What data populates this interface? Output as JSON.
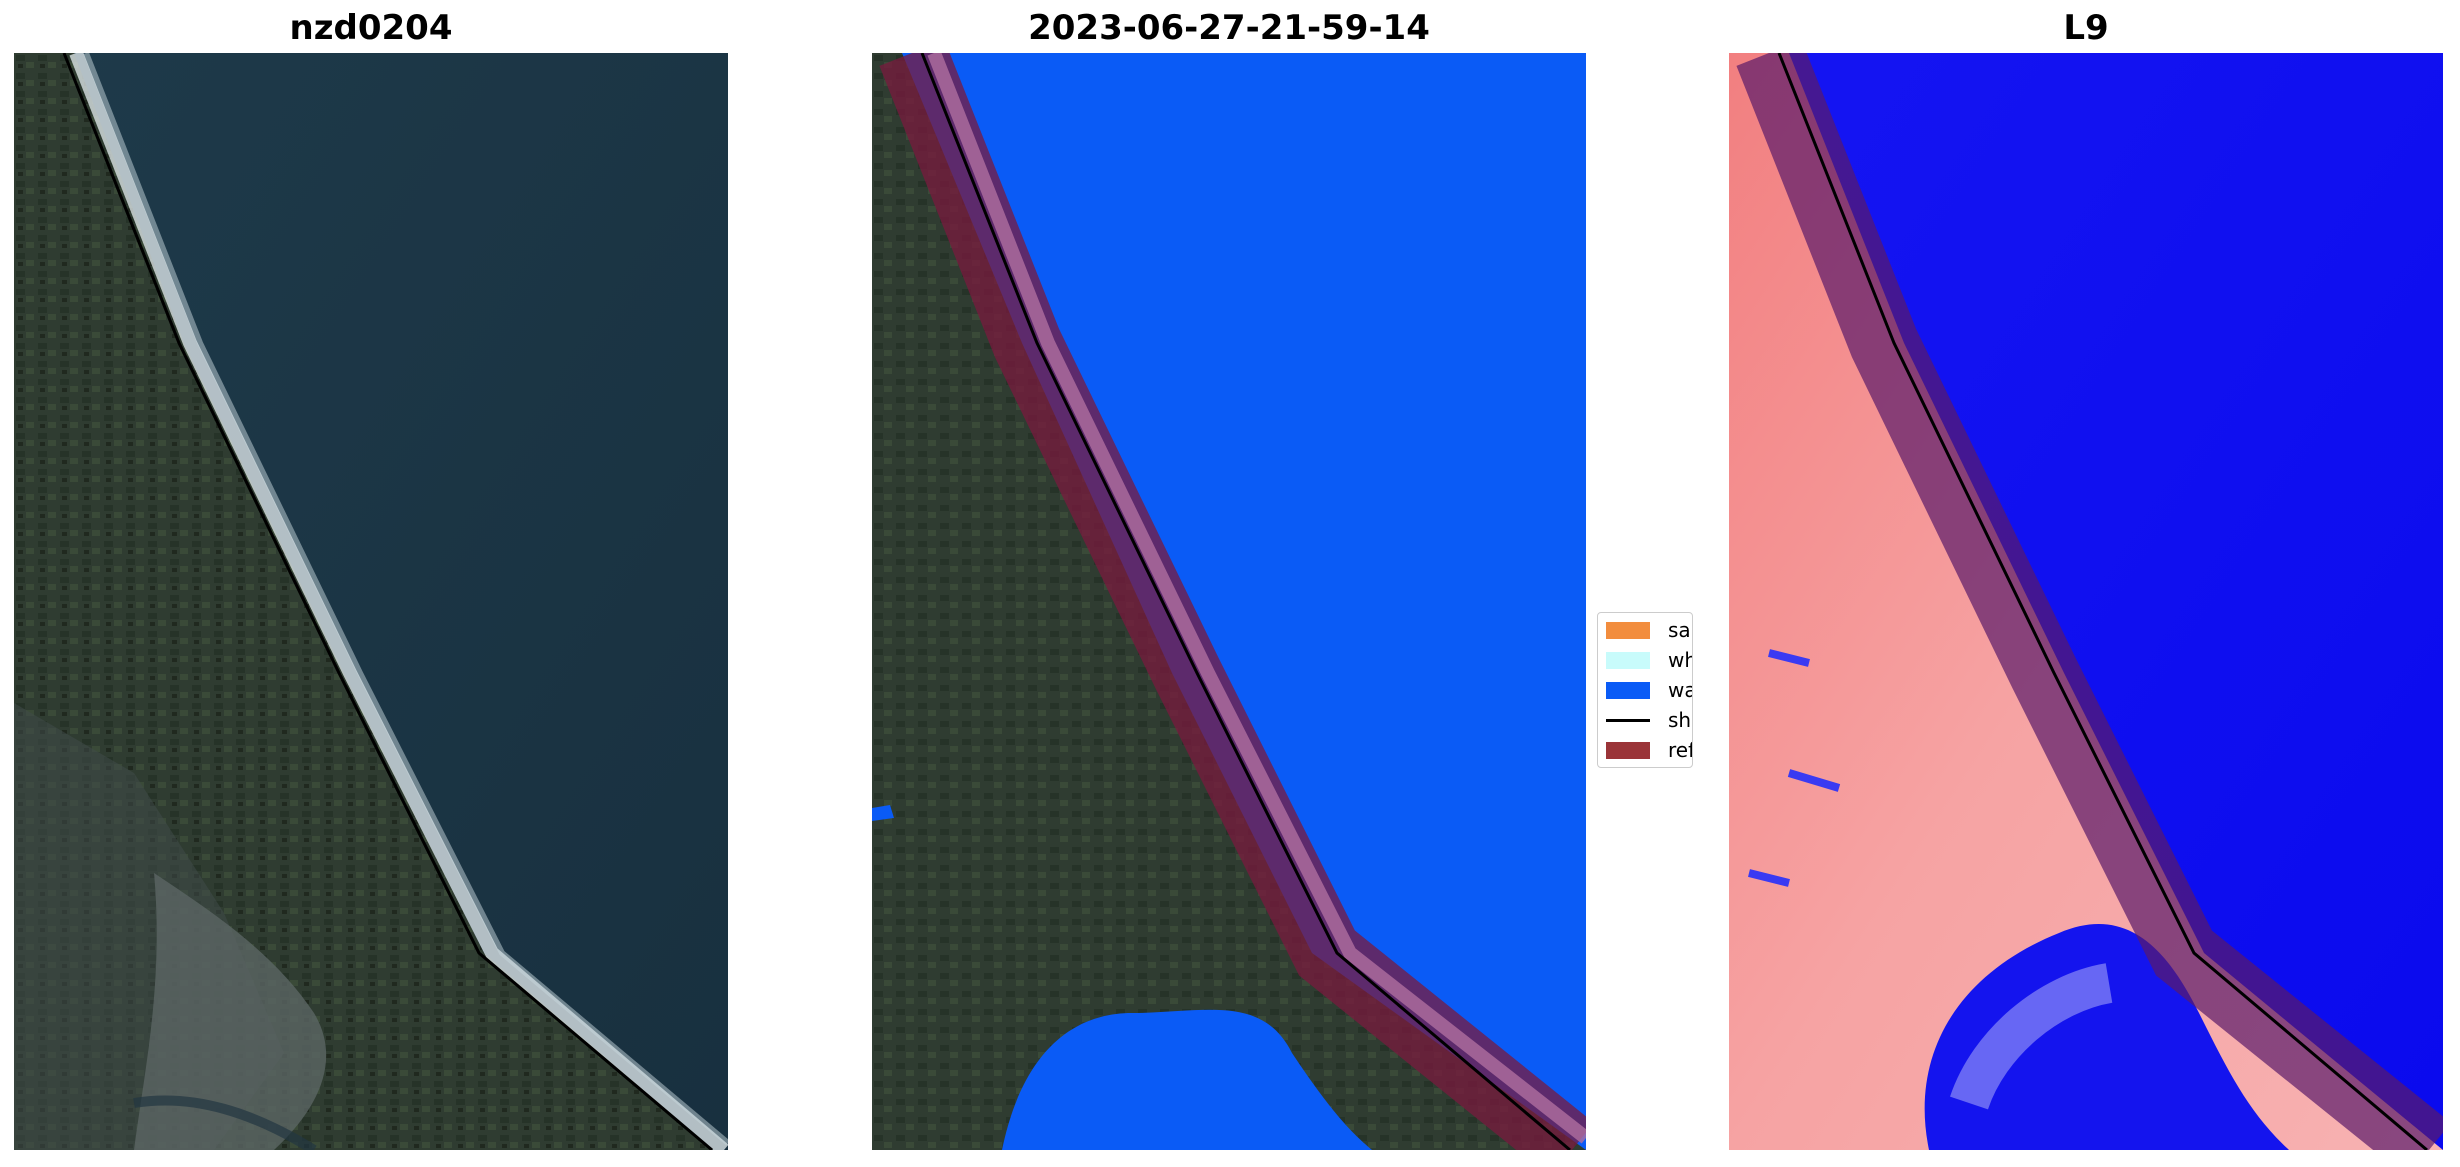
{
  "panels": [
    {
      "title": "nzd0204"
    },
    {
      "title": "2023-06-27-21-59-14"
    },
    {
      "title": "L9"
    }
  ],
  "legend": {
    "items": [
      {
        "label": "sand",
        "color": "#f28d3e",
        "kind": "patch"
      },
      {
        "label": "whitewater",
        "color": "#c8fbfb",
        "kind": "patch"
      },
      {
        "label": "water",
        "color": "#0a5bf6",
        "kind": "patch"
      },
      {
        "label": "shoreline",
        "color": "#000000",
        "kind": "line"
      },
      {
        "label": "reference shoreline buffer",
        "color": "#9a3438",
        "kind": "patch"
      }
    ]
  },
  "colors": {
    "ocean_rgb": "#1b3345",
    "land_rgb": "#2f3d33",
    "surf": "#dfe7ec",
    "water_class": "#0a5bf6",
    "buffer": "#7a1a3e",
    "index_land": "#f58a8a",
    "index_water": "#0b0bf0"
  }
}
